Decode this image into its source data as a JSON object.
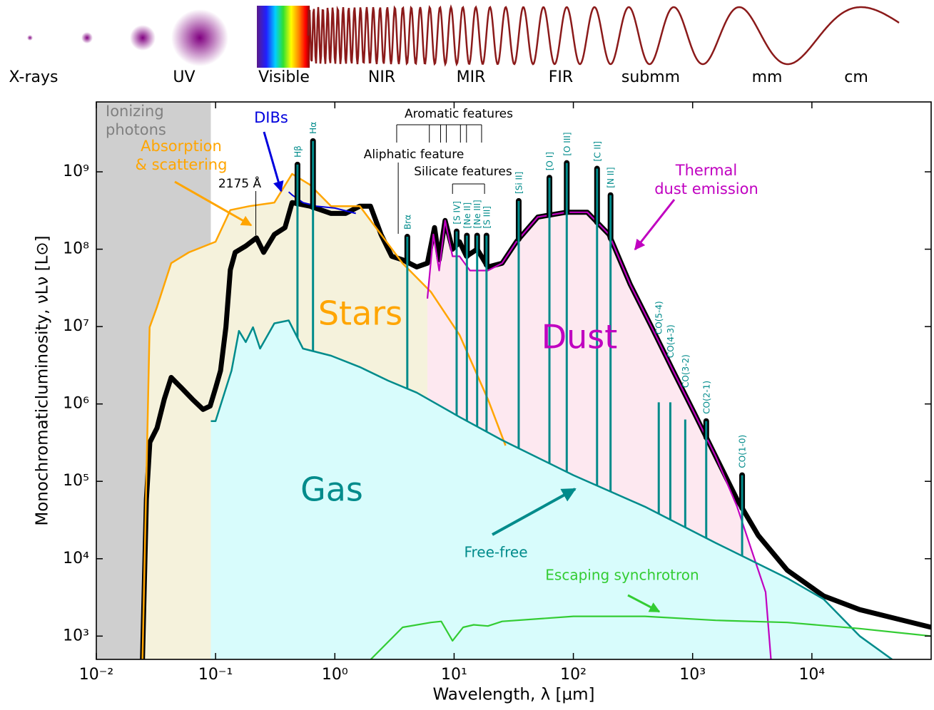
{
  "chart_data": {
    "type": "line",
    "x_label": "Wavelength, λ [µm]",
    "y_label": "Monochromaticluminosity, νLν [L⊙]",
    "xscale": "log",
    "yscale": "log",
    "xlim": [
      0.01,
      100000
    ],
    "ylim": [
      500,
      8000000000.0
    ],
    "xticks": [
      {
        "value": 0.01,
        "label": "10⁻²"
      },
      {
        "value": 0.1,
        "label": "10⁻¹"
      },
      {
        "value": 1,
        "label": "10⁰"
      },
      {
        "value": 10,
        "label": "10¹"
      },
      {
        "value": 100,
        "label": "10²"
      },
      {
        "value": 1000,
        "label": "10³"
      },
      {
        "value": 10000,
        "label": "10⁴"
      }
    ],
    "yticks": [
      {
        "value": 1000,
        "label": "10³"
      },
      {
        "value": 10000,
        "label": "10⁴"
      },
      {
        "value": 100000,
        "label": "10⁵"
      },
      {
        "value": 1000000,
        "label": "10⁶"
      },
      {
        "value": 10000000,
        "label": "10⁷"
      },
      {
        "value": 100000000,
        "label": "10⁸"
      },
      {
        "value": 1000000000,
        "label": "10⁹"
      }
    ],
    "ionizing_edge": 0.0912,
    "ionizing_color": "#cfcfcf",
    "series": [
      {
        "color": "#000000",
        "x": [
          0.0244,
          0.0263,
          0.0281,
          0.0323,
          0.0371,
          0.0424,
          0.052,
          0.064,
          0.0785,
          0.09,
          0.1,
          0.11,
          0.122,
          0.133,
          0.146,
          0.179,
          0.22,
          0.253,
          0.311,
          0.382,
          0.438,
          0.618,
          0.93,
          1.23,
          1.62,
          1.99,
          2.44,
          3.0,
          3.69,
          4.86,
          5.97,
          6.85,
          7.5,
          8.4,
          9.7,
          11.1,
          12.7,
          15.6,
          19.2,
          25.3,
          33.3,
          50.3,
          87,
          131,
          199,
          300,
          454,
          685,
          1035,
          1560,
          2350,
          3550,
          6210,
          12550,
          25200,
          100000
        ],
        "values": [
          500,
          59000,
          320000,
          490000,
          1150000,
          2200000,
          1600000,
          1150000,
          850000,
          940000,
          1600000,
          2700000,
          9800000,
          54000000,
          91000000,
          110000000,
          140000000,
          91000000,
          155000000,
          190000000,
          400000000,
          360000000,
          290000000,
          290000000,
          360000000,
          360000000,
          155000000,
          81000000,
          73000000,
          59000000,
          66000000,
          190000000,
          73000000,
          235000000,
          100000000,
          125000000,
          81000000,
          100000000,
          59000000,
          66000000,
          125000000,
          260000000,
          300000000,
          300000000,
          155000000,
          35000000,
          9800000,
          2700000,
          760000,
          210000,
          59000,
          20000,
          7100,
          3300,
          2200,
          1300
        ]
      },
      {
        "name": "Stars",
        "color": "#ffa500",
        "fill": "#f5f2dc",
        "x": [
          0.0244,
          0.028,
          0.0323,
          0.0424,
          0.0597,
          0.1,
          0.133,
          0.192,
          0.311,
          0.438,
          0.618,
          0.93,
          1.62,
          2.44,
          3.69,
          6.4,
          11.1,
          19.2,
          27
        ],
        "values": [
          500,
          9800000,
          18000000,
          66000000,
          91000000,
          125000000,
          320000000,
          360000000,
          400000000,
          940000000,
          680000000,
          360000000,
          360000000,
          155000000,
          66000000,
          28000000,
          7800000,
          1150000,
          290000
        ]
      },
      {
        "name": "Dust",
        "color": "#c000c0",
        "fill": "#fde8f0",
        "x": [
          5.97,
          6.7,
          7.5,
          8.4,
          9.7,
          11.1,
          13.6,
          19.2,
          25.3,
          33.3,
          50.3,
          87,
          131,
          199,
          300,
          454,
          685,
          1035,
          1560,
          2350,
          3550,
          4090,
          4540
        ],
        "values": [
          23000000,
          155000000,
          53000000,
          235000000,
          81000000,
          81000000,
          53000000,
          53000000,
          66000000,
          125000000,
          260000000,
          300000000,
          300000000,
          155000000,
          35000000,
          9800000,
          2700000,
          760000,
          210000,
          48000,
          7100,
          3700,
          500
        ]
      },
      {
        "name": "Gas",
        "color": "#008b8b",
        "fill": "#d8fcfc",
        "x": [
          0.0912,
          0.1,
          0.136,
          0.157,
          0.179,
          0.206,
          0.236,
          0.311,
          0.41,
          0.54,
          0.93,
          1.62,
          2.8,
          4.86,
          11.1,
          25.3,
          100,
          398,
          1560,
          6210,
          12550,
          25200,
          47000
        ],
        "values": [
          600000,
          600000,
          2700000,
          8800000,
          6300000,
          9800000,
          5200000,
          11000000,
          12000000,
          5200000,
          4200000,
          3000000,
          2000000,
          1400000,
          680000,
          340000,
          120000,
          47000,
          16000,
          5600,
          3000,
          1000,
          500
        ]
      },
      {
        "color": "#33cc33",
        "x": [
          2.0,
          3.7,
          6.4,
          7.8,
          9.7,
          11.9,
          14.6,
          19.2,
          25.3,
          100,
          398,
          1560,
          6210,
          25200,
          100000
        ],
        "values": [
          500,
          1300,
          1500,
          1550,
          870,
          1300,
          1400,
          1350,
          1550,
          1800,
          1800,
          1600,
          1500,
          1250,
          1000
        ]
      },
      {
        "color": "#0000dd",
        "x": [
          0.41,
          0.44,
          0.54,
          0.7,
          1.0,
          1.5
        ],
        "values": [
          550000000,
          500000000,
          400000000,
          360000000,
          340000000,
          290000000
        ]
      }
    ],
    "line_color": "#008b8b",
    "lines": [
      {
        "label": "Hβ",
        "x": 0.486,
        "peak": 1240000000
      },
      {
        "label": "Hα",
        "x": 0.656,
        "peak": 2500000000
      },
      {
        "label": "Brα",
        "x": 4.05,
        "peak": 145000000
      },
      {
        "label": "[S IV]",
        "x": 10.5,
        "peak": 170000000
      },
      {
        "label": "[Ne II]",
        "x": 12.8,
        "peak": 150000000
      },
      {
        "label": "[Ne III]",
        "x": 15.6,
        "peak": 150000000
      },
      {
        "label": "[S III]",
        "x": 18.7,
        "peak": 150000000
      },
      {
        "label": "[Si II]",
        "x": 34.8,
        "peak": 420000000
      },
      {
        "label": "[O I]",
        "x": 63,
        "peak": 840000000
      },
      {
        "label": "[O III]",
        "x": 88,
        "peak": 1300000000
      },
      {
        "label": "[C II]",
        "x": 158,
        "peak": 1100000000
      },
      {
        "label": "[N II]",
        "x": 205,
        "peak": 500000000
      },
      {
        "label": "CO(5-4)",
        "x": 520,
        "peak": 1050000
      },
      {
        "label": "CO(4-3)",
        "x": 650,
        "peak": 1050000
      },
      {
        "label": "CO(3-2)",
        "x": 867,
        "peak": 630000
      },
      {
        "label": "CO(2-1)",
        "x": 1300,
        "peak": 600000
      },
      {
        "label": "CO(1-0)",
        "x": 2600,
        "peak": 120000
      }
    ],
    "annotations": [
      {
        "lines": [
          "Ionizing",
          "photons"
        ],
        "color": "#808080"
      },
      {
        "lines": [
          "Absorption",
          "& scattering"
        ],
        "color": "#ffa500"
      },
      {
        "lines": [
          "DIBs"
        ],
        "color": "#0000dd"
      },
      {
        "lines": [
          "2175 Å"
        ],
        "color": "#000000",
        "x": [
          0.2175
        ]
      },
      {
        "lines": [
          "Aromatic features"
        ],
        "color": "#000000",
        "x": [
          3.3,
          6.2,
          7.7,
          8.6,
          11.3,
          12.7,
          17
        ]
      },
      {
        "lines": [
          "Aliphatic feature"
        ],
        "color": "#000000",
        "x": [
          3.4
        ]
      },
      {
        "lines": [
          "Silicate features"
        ],
        "color": "#000000",
        "x": [
          9.7,
          18
        ]
      },
      {
        "lines": [
          "Thermal",
          "dust emission"
        ],
        "color": "#c000c0"
      },
      {
        "lines": [
          "Free-free"
        ],
        "color": "#008b8b"
      },
      {
        "lines": [
          "Escaping synchrotron"
        ],
        "color": "#33cc33"
      }
    ],
    "bands": [
      "X-rays",
      "UV",
      "Visible",
      "NIR",
      "MIR",
      "FIR",
      "submm",
      "mm",
      "cm"
    ]
  }
}
